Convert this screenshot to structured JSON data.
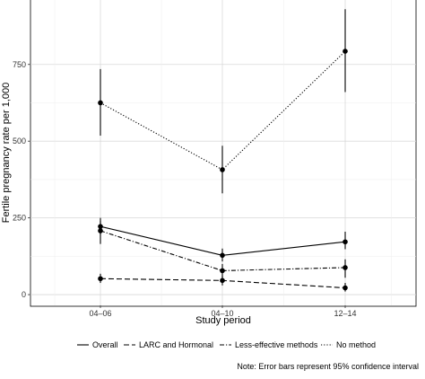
{
  "chart_data": {
    "type": "line",
    "title": "",
    "xlabel": "Study period",
    "ylabel": "Fertile pregnancy rate per 1,000",
    "categories": [
      "04–06",
      "04–10",
      "12–14"
    ],
    "yticks": [
      0,
      250,
      500,
      750
    ],
    "ytick_labels": [
      "0",
      "250",
      "500",
      "750"
    ],
    "ylim": [
      -35,
      960
    ],
    "grid": true,
    "legend_position": "bottom",
    "series": [
      {
        "name": "Overall",
        "linetype": "solid",
        "values": [
          222,
          128,
          172
        ],
        "ci_low": [
          195,
          108,
          148
        ],
        "ci_high": [
          250,
          150,
          205
        ]
      },
      {
        "name": "LARC and Hormonal",
        "linetype": "dashed",
        "values": [
          52,
          46,
          22
        ],
        "ci_low": [
          38,
          30,
          10
        ],
        "ci_high": [
          68,
          62,
          38
        ]
      },
      {
        "name": "Less-effective methods",
        "linetype": "dotdash",
        "values": [
          208,
          78,
          88
        ],
        "ci_low": [
          165,
          55,
          55
        ],
        "ci_high": [
          240,
          100,
          115
        ]
      },
      {
        "name": "No method",
        "linetype": "dotted",
        "values": [
          625,
          407,
          793
        ],
        "ci_low": [
          518,
          330,
          660
        ],
        "ci_high": [
          735,
          485,
          930
        ]
      }
    ],
    "note": "Note: Error bars represent 95% confidence interval"
  }
}
